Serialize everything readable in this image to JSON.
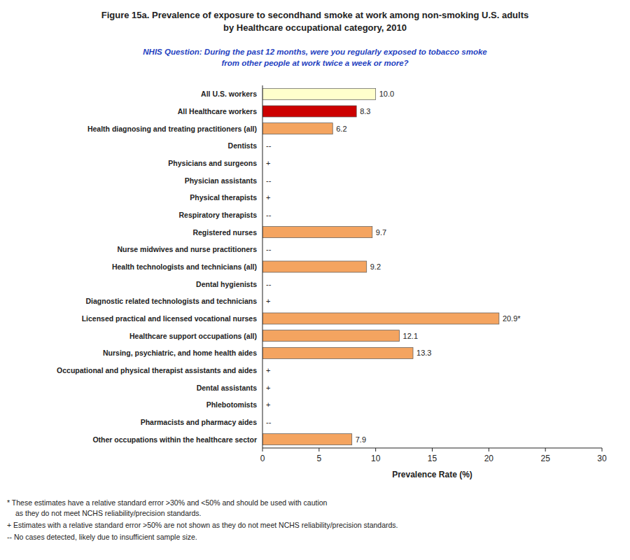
{
  "chart_data": {
    "type": "bar",
    "orientation": "horizontal",
    "title": [
      "Figure 15a. Prevalence of exposure to secondhand smoke at work among non-smoking U.S. adults",
      "by Healthcare occupational category, 2010"
    ],
    "subtitle": [
      "NHIS Question: During the past 12 months, were you regularly exposed to tobacco smoke",
      "from other people at work twice a week or more?"
    ],
    "x_label": "Prevalence Rate (%)",
    "xlim": [
      0,
      30
    ],
    "xticks": [
      0,
      5,
      10,
      15,
      20,
      25,
      30
    ],
    "categories": [
      "Other occupations within the healthcare sector",
      "Pharmacists and pharmacy aides",
      "Phlebotomists",
      "Dental assistants",
      "Occupational and physical therapist assistants and aides",
      "Nursing, psychiatric, and home health aides",
      "Healthcare support occupations (all)",
      "Licensed practical and licensed vocational nurses",
      "Diagnostic related technologists and technicians",
      "Dental hygienists",
      "Health technologists and technicians (all)",
      "Nurse midwives and nurse practitioners",
      "Registered nurses",
      "Respiratory therapists",
      "Physical therapists",
      "Physician assistants",
      "Physicians and surgeons",
      "Dentists",
      "Health diagnosing and treating practitioners (all)",
      "All Healthcare workers",
      "All U.S. workers"
    ],
    "values": [
      7.9,
      null,
      null,
      null,
      null,
      13.3,
      12.1,
      20.9,
      null,
      null,
      9.2,
      null,
      9.7,
      null,
      null,
      null,
      null,
      null,
      6.2,
      8.3,
      10.0
    ],
    "value_labels": [
      "7.9",
      "--",
      "+",
      "+",
      "+",
      "13.3",
      "12.1",
      "20.9*",
      "+",
      "--",
      "9.2",
      "--",
      "9.7",
      "--",
      "+",
      "--",
      "+",
      "--",
      "6.2",
      "8.3",
      "10.0"
    ],
    "colors": [
      "#F4A460",
      null,
      null,
      null,
      null,
      "#F4A460",
      "#F4A460",
      "#F4A460",
      null,
      null,
      "#F4A460",
      null,
      "#F4A460",
      null,
      null,
      null,
      null,
      null,
      "#F4A460",
      "#CC0000",
      "#FFFFCC"
    ],
    "data_labels": true,
    "grid": false,
    "annotations": [
      "* These estimates have a relative standard error >30% and <50% and should be used with caution",
      "as they do not meet NCHS reliability/precision standards.",
      "+ Estimates with a relative standard error >50% are not shown as they do not meet NCHS reliability/precision standards.",
      "-- No cases detected, likely due to insufficient sample size."
    ]
  }
}
